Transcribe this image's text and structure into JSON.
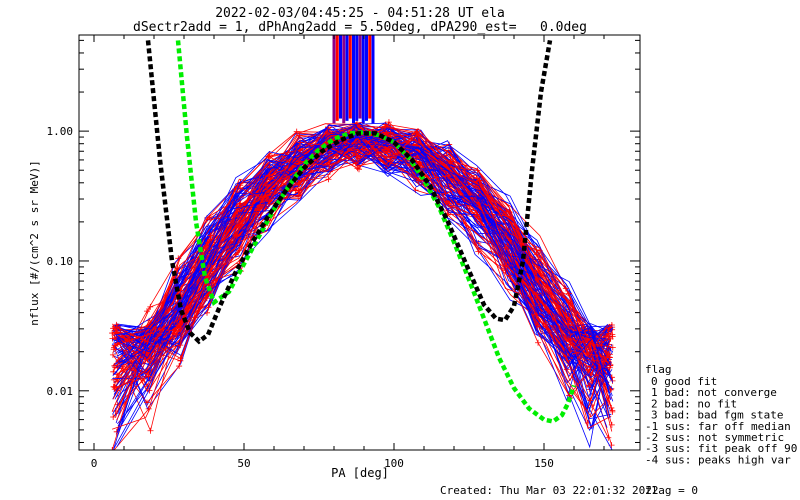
{
  "chart_data": {
    "type": "line",
    "title": "2022-02-03/04:45:25 - 04:51:28 UT ela",
    "subtitle": "dSectr2add = 1, dPhAng2add = 5.50deg, dPA290_est=   0.0deg",
    "xlabel": "PA [deg]",
    "ylabel": "nflux [#/(cm^2 s sr MeV)]",
    "x_scale": "linear",
    "y_scale": "log",
    "xlim": [
      -5,
      182
    ],
    "ylim": [
      0.0035,
      5.5
    ],
    "x_ticks": [
      0,
      50,
      100,
      150
    ],
    "x_tick_labels": [
      "0",
      "50",
      "100",
      "150"
    ],
    "y_ticks": [
      0.01,
      0.1,
      1.0
    ],
    "y_tick_labels": [
      "0.01",
      "0.10",
      "1.00"
    ],
    "grid": false,
    "legend_position": "right",
    "legend_title": "flag",
    "legend_entries": [
      "0 good fit",
      "1 bad: not converge",
      "2 bad: no fit",
      "3 bad: bad fgm state",
      "-1 sus: far off median",
      "-2 sus: not symmetric",
      "-3 sus: fit peak off 90",
      "-4 sus: peaks high var"
    ],
    "colors": {
      "red_series": "#ff0000",
      "blue_series": "#0000ff",
      "green_fit": "#00ee00",
      "black_fit": "#000000",
      "bar_purple": "#8b008b"
    },
    "series": [
      {
        "color": "#00ee00",
        "style": "dashed-thick",
        "x": [
          28,
          31,
          34,
          37,
          40,
          45,
          50,
          55,
          60,
          65,
          70,
          75,
          80,
          85,
          90,
          95,
          100,
          105,
          110,
          115,
          120,
          125,
          130,
          135,
          140,
          145,
          150,
          153,
          156,
          158,
          160
        ],
        "y": [
          5.0,
          0.9,
          0.2,
          0.075,
          0.048,
          0.058,
          0.095,
          0.155,
          0.25,
          0.38,
          0.55,
          0.72,
          0.87,
          0.96,
          0.98,
          0.93,
          0.82,
          0.62,
          0.42,
          0.26,
          0.14,
          0.072,
          0.036,
          0.018,
          0.0105,
          0.0073,
          0.006,
          0.0058,
          0.0065,
          0.008,
          0.011
        ]
      },
      {
        "color": "#000000",
        "style": "dashed-thick",
        "x": [
          18,
          22,
          26,
          29,
          32,
          35,
          38,
          42,
          47,
          52,
          58,
          64,
          70,
          76,
          82,
          88,
          94,
          100,
          106,
          112,
          118,
          124,
          130,
          134,
          137,
          140,
          143,
          146,
          149,
          152
        ],
        "y": [
          5.0,
          0.6,
          0.1,
          0.042,
          0.028,
          0.024,
          0.027,
          0.045,
          0.08,
          0.13,
          0.22,
          0.35,
          0.52,
          0.7,
          0.85,
          0.96,
          0.96,
          0.82,
          0.6,
          0.38,
          0.2,
          0.095,
          0.046,
          0.036,
          0.035,
          0.045,
          0.1,
          0.5,
          2.0,
          5.0
        ]
      }
    ],
    "bars": {
      "description_x_range": [
        80,
        93
      ],
      "note": "vertical purple/red/blue bars from top to ~1.2"
    },
    "footer": {
      "created": "Created: Thu Mar 03 22:01:32 2022",
      "flag": "flag = 0"
    }
  }
}
